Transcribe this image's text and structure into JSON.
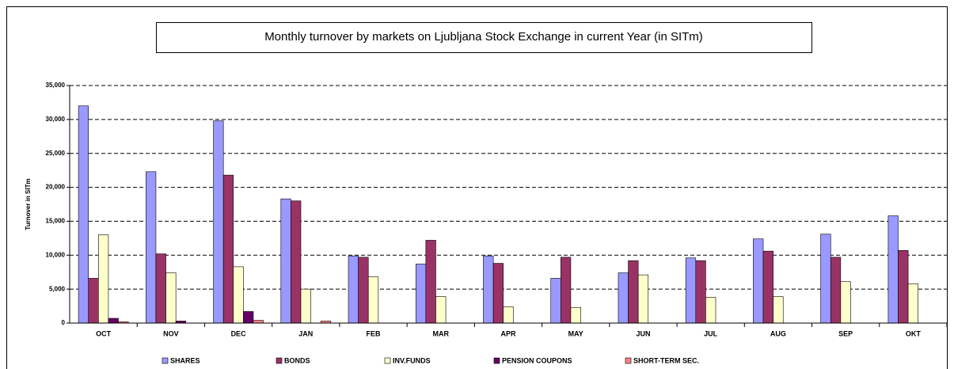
{
  "chart_data": {
    "type": "bar",
    "title": "Monthly turnover by markets on Ljubljana Stock Exchange in current Year (in SITm)",
    "ylabel": "Turnover in SITm",
    "categories": [
      "OCT",
      "NOV",
      "DEC",
      "JAN",
      "FEB",
      "MAR",
      "APR",
      "MAY",
      "JUN",
      "JUL",
      "AUG",
      "SEP",
      "OKT"
    ],
    "series": [
      {
        "name": "SHARES",
        "color": "#9999ff",
        "values": [
          32000,
          22300,
          29800,
          18300,
          9900,
          8700,
          9900,
          6600,
          7400,
          9600,
          12400,
          13100,
          15800
        ]
      },
      {
        "name": "BONDS",
        "color": "#993366",
        "values": [
          6600,
          10200,
          21800,
          18000,
          9700,
          12200,
          8800,
          9700,
          9200,
          9200,
          10600,
          9700,
          10700
        ]
      },
      {
        "name": "INV.FUNDS",
        "color": "#ffffcc",
        "values": [
          13000,
          7400,
          8300,
          5000,
          6800,
          3900,
          2400,
          2300,
          7100,
          3800,
          3900,
          6100,
          5800
        ]
      },
      {
        "name": "PENSION COUPONS",
        "color": "#660066",
        "values": [
          700,
          300,
          1700,
          0,
          0,
          0,
          0,
          0,
          0,
          0,
          0,
          0,
          0
        ]
      },
      {
        "name": "SHORT-TERM SEC.",
        "color": "#ff8080",
        "values": [
          200,
          0,
          400,
          300,
          0,
          0,
          0,
          0,
          0,
          0,
          0,
          0,
          0
        ]
      }
    ],
    "ylim": [
      0,
      35000
    ],
    "yticks": [
      0,
      {
        "value": 5000,
        "label": "5,000"
      },
      {
        "value": 10000,
        "label": "10,000"
      },
      {
        "value": 15000,
        "label": "15,000"
      },
      {
        "value": 20000,
        "label": "20,000"
      },
      {
        "value": 25000,
        "label": "25,000"
      },
      {
        "value": 30000,
        "label": "30,000"
      },
      {
        "value": 35000,
        "label": "35,000"
      }
    ],
    "grid": true,
    "legend": "bottom"
  }
}
